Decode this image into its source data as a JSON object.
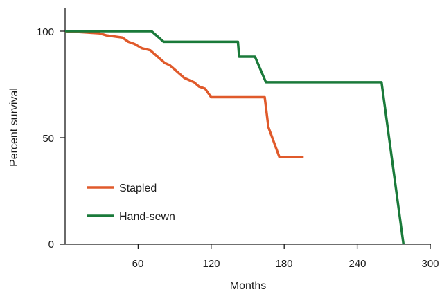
{
  "chart_data": {
    "type": "line",
    "title": "",
    "xlabel": "Months",
    "ylabel": "Percent survival",
    "xlim": [
      0,
      300
    ],
    "ylim": [
      0,
      100
    ],
    "xticks": [
      "60",
      "120",
      "180",
      "240",
      "300"
    ],
    "yticks": [
      "0",
      "50",
      "100"
    ],
    "grid": false,
    "legend_position": "lower-left",
    "step": true,
    "series": [
      {
        "name": "Stapled",
        "color": "#e05a2b",
        "points": [
          [
            0,
            100
          ],
          [
            28,
            99
          ],
          [
            34,
            98
          ],
          [
            47,
            97
          ],
          [
            52,
            95
          ],
          [
            57,
            94
          ],
          [
            63,
            92
          ],
          [
            70,
            91
          ],
          [
            74,
            89
          ],
          [
            78,
            87
          ],
          [
            82,
            85
          ],
          [
            86,
            84
          ],
          [
            90,
            82
          ],
          [
            94,
            80
          ],
          [
            98,
            78
          ],
          [
            102,
            77
          ],
          [
            106,
            76
          ],
          [
            110,
            74
          ],
          [
            115,
            73
          ],
          [
            120,
            69
          ],
          [
            164,
            69
          ],
          [
            167,
            55
          ],
          [
            176,
            41
          ],
          [
            196,
            41
          ]
        ]
      },
      {
        "name": "Hand-sewn",
        "color": "#1a7a3a",
        "points": [
          [
            0,
            100
          ],
          [
            71,
            100
          ],
          [
            81,
            95
          ],
          [
            142,
            95
          ],
          [
            143,
            88
          ],
          [
            156,
            88
          ],
          [
            165,
            76
          ],
          [
            260,
            76
          ],
          [
            278,
            0
          ]
        ]
      }
    ]
  }
}
